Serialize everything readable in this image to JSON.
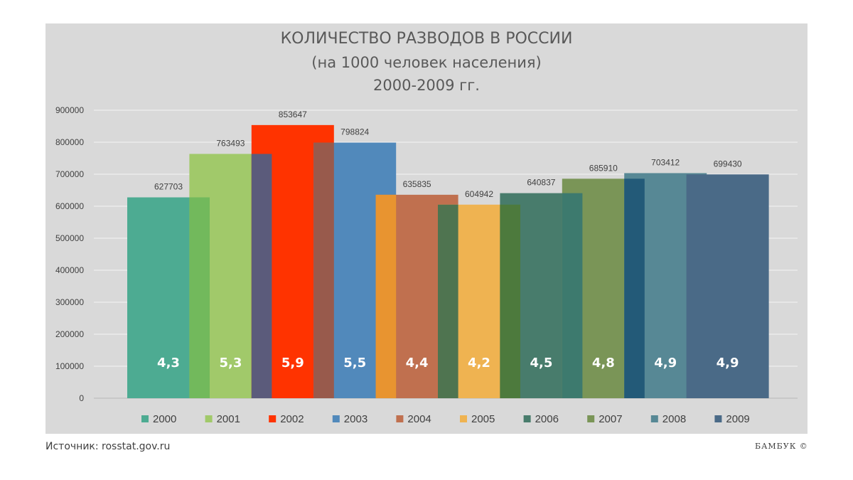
{
  "chart_data": {
    "type": "bar",
    "title": "КОЛИЧЕСТВО РАЗВОДОВ В РОССИИ",
    "subtitle_lines": [
      "(на 1000 человек населения)",
      "2000-2009 гг."
    ],
    "categories": [
      "2000",
      "2001",
      "2002",
      "2003",
      "2004",
      "2005",
      "2006",
      "2007",
      "2008",
      "2009"
    ],
    "values": [
      627703,
      763493,
      853647,
      798824,
      635835,
      604942,
      640837,
      685910,
      703412,
      699430
    ],
    "rates": [
      "4,3",
      "5,3",
      "5,9",
      "5,5",
      "4,4",
      "4,2",
      "4,5",
      "4,8",
      "4,9",
      "4,9"
    ],
    "colors": [
      "#4dab92",
      "#a1c96a",
      "#ff3300",
      "#5189bb",
      "#c0704f",
      "#efb351",
      "#487c6c",
      "#7a9557",
      "#578895",
      "#4a6a87"
    ],
    "overlap_colors": [
      "#72b95c",
      "#5b5b7b",
      "#985a4c",
      "#e89430",
      "#4f7450",
      "#4d7a3d",
      "#3d7a6e",
      "#235a78"
    ],
    "yticks": [
      "0",
      "100000",
      "200000",
      "300000",
      "400000",
      "500000",
      "600000",
      "700000",
      "800000",
      "900000"
    ],
    "ylim": [
      0,
      900000
    ],
    "grid": true,
    "legend_position": "bottom"
  },
  "footer": {
    "source": "Источник: rosstat.gov.ru",
    "copyright": "БАМБУК ©"
  }
}
